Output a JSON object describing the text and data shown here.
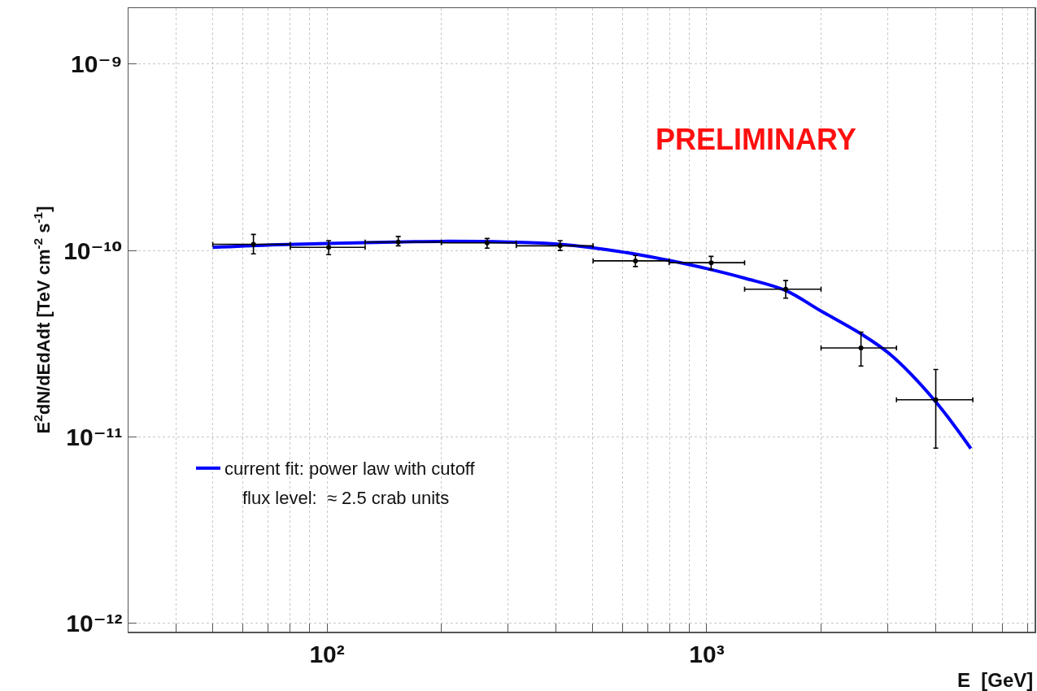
{
  "chart_data": {
    "type": "scatter",
    "xlabel": "E  [GeV]",
    "ylabel": "E$^{2}$dN/dEdAdt [TeV cm$^{-2}$ s$^{-1}$]",
    "log": "xy",
    "grid": true,
    "legend": "bottom left",
    "marker": "none",
    "xlim": [
      30,
      7300
    ],
    "ylim": [
      9e-13,
      2e-09
    ],
    "xticks": [
      {
        "value": 30,
        "label": null
      },
      {
        "value": 40,
        "label": null
      },
      {
        "value": 50,
        "label": null
      },
      {
        "value": 60,
        "label": null
      },
      {
        "value": 70,
        "label": null
      },
      {
        "value": 80,
        "label": null
      },
      {
        "value": 90,
        "label": null
      },
      {
        "value": 100,
        "label": "10²"
      },
      {
        "value": 200,
        "label": null
      },
      {
        "value": 300,
        "label": null
      },
      {
        "value": 400,
        "label": null
      },
      {
        "value": 500,
        "label": null
      },
      {
        "value": 600,
        "label": null
      },
      {
        "value": 700,
        "label": null
      },
      {
        "value": 800,
        "label": null
      },
      {
        "value": 900,
        "label": null
      },
      {
        "value": 1000,
        "label": "10³"
      },
      {
        "value": 2000,
        "label": null
      },
      {
        "value": 3000,
        "label": null
      },
      {
        "value": 4000,
        "label": null
      },
      {
        "value": 5000,
        "label": null
      },
      {
        "value": 6000,
        "label": null
      },
      {
        "value": 7000,
        "label": null
      }
    ],
    "yticks": [
      {
        "value": 1e-12,
        "label": "10⁻¹²"
      },
      {
        "value": 1e-11,
        "label": "10⁻¹¹"
      },
      {
        "value": 1e-10,
        "label": "10⁻¹⁰"
      },
      {
        "value": 1e-09,
        "label": "10⁻⁹"
      }
    ],
    "series": [
      {
        "color": "#000000",
        "x": [
          64,
          101,
          154,
          264,
          411,
          649,
          1027,
          1614,
          2548,
          4010
        ],
        "values": [
          1.08e-10,
          1.04e-10,
          1.11e-10,
          1.1e-10,
          1.06e-10,
          8.8e-11,
          8.6e-11,
          6.2e-11,
          3e-11,
          1.58e-11
        ],
        "errors": [
          [
            9.6e-11,
            1.22e-10
          ],
          [
            9.5e-11,
            1.13e-10
          ],
          [
            1.06e-10,
            1.19e-10
          ],
          [
            1.03e-10,
            1.16e-10
          ],
          [
            1e-10,
            1.13e-10
          ],
          [
            8.2e-11,
            9.4e-11
          ],
          [
            7.9e-11,
            9.3e-11
          ],
          [
            5.55e-11,
            6.9e-11
          ],
          [
            2.4e-11,
            3.65e-11
          ],
          [
            8.7e-12,
            2.3e-11
          ]
        ],
        "xerrors": [
          [
            50,
            80
          ],
          [
            80,
            126
          ],
          [
            126,
            200
          ],
          [
            200,
            315
          ],
          [
            315,
            502
          ],
          [
            502,
            796
          ],
          [
            796,
            1258
          ],
          [
            1258,
            2000
          ],
          [
            2000,
            3160
          ],
          [
            3160,
            5020
          ]
        ]
      },
      {
        "type": "line",
        "name": "current fit: power law with cutoff",
        "color": "#0000ff",
        "x": [
          50,
          70,
          100,
          150,
          200,
          300,
          411,
          625,
          785,
          1000,
          1260,
          1614,
          1994,
          2548,
          3035,
          3960,
          4960
        ],
        "values": [
          1.04e-10,
          1.07e-10,
          1.09e-10,
          1.11e-10,
          1.12e-10,
          1.11e-10,
          1.08e-10,
          9.7e-11,
          8.9e-11,
          8e-11,
          7.1e-11,
          6.1e-11,
          4.75e-11,
          3.57e-11,
          2.78e-11,
          1.59e-11,
          8.65e-12
        ]
      }
    ],
    "annotations": [
      "PRELIMINARY",
      "flux level:  ≈ 2.5 crab units"
    ]
  }
}
